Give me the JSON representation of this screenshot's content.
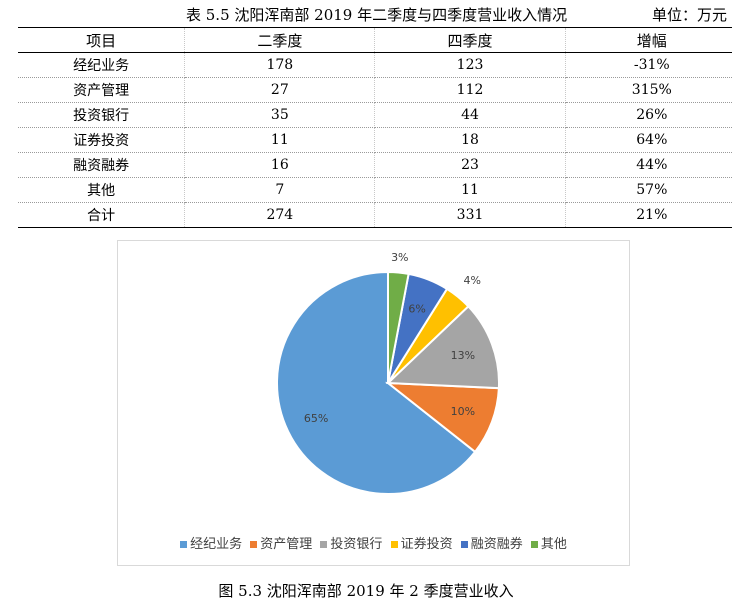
{
  "table_caption": "表 5.5  沈阳浑南部 2019 年二季度与四季度营业收入情况",
  "unit_label": "单位：万元",
  "table": {
    "headers": [
      "项目",
      "二季度",
      "四季度",
      "增幅"
    ],
    "rows": [
      [
        "经纪业务",
        "178",
        "123",
        "-31%"
      ],
      [
        "资产管理",
        "27",
        "112",
        "315%"
      ],
      [
        "投资银行",
        "35",
        "44",
        "26%"
      ],
      [
        "证券投资",
        "11",
        "18",
        "64%"
      ],
      [
        "融资融券",
        "16",
        "23",
        "44%"
      ],
      [
        "其他",
        "7",
        "11",
        "57%"
      ],
      [
        "合计",
        "274",
        "331",
        "21%"
      ]
    ]
  },
  "chart_data": {
    "type": "pie",
    "categories": [
      "经纪业务",
      "资产管理",
      "投资银行",
      "证券投资",
      "融资融券",
      "其他"
    ],
    "values": [
      65,
      10,
      13,
      4,
      6,
      3
    ],
    "labels": [
      "65%",
      "10%",
      "13%",
      "4%",
      "6%",
      "3%"
    ],
    "colors": [
      "#5B9BD5",
      "#ED7D31",
      "#A5A5A5",
      "#FFC000",
      "#4472C4",
      "#70AD47"
    ],
    "legend_position": "bottom"
  },
  "figure_caption": "图 5.3  沈阳浑南部 2019 年 2 季度营业收入"
}
